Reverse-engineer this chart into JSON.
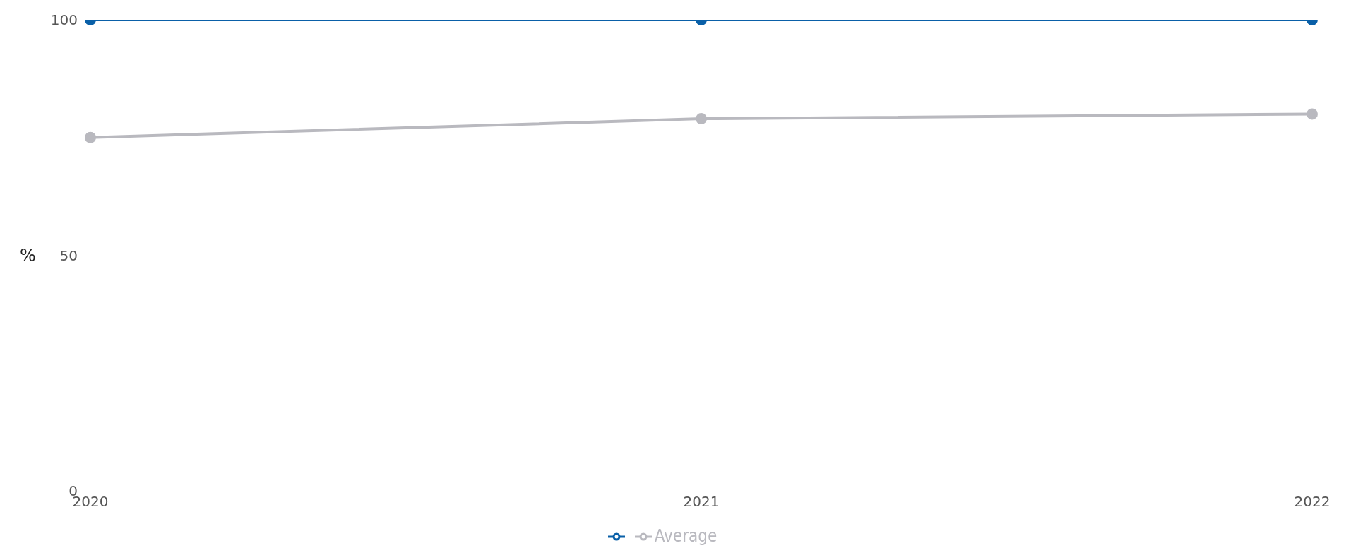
{
  "chart_data": {
    "type": "line",
    "ylabel": "%",
    "categories": [
      "2020",
      "2021",
      "2022"
    ],
    "series": [
      {
        "color": "#0a60a8",
        "values": [
          100,
          100,
          100
        ]
      },
      {
        "name": "Average",
        "color": "#b9b9bf",
        "values": [
          75,
          79,
          80
        ]
      }
    ],
    "ylim": [
      0,
      100
    ],
    "yticks": [
      0,
      50,
      100
    ],
    "grid": false,
    "legend": "bottom",
    "marker": "circle",
    "line_style": "solid"
  }
}
